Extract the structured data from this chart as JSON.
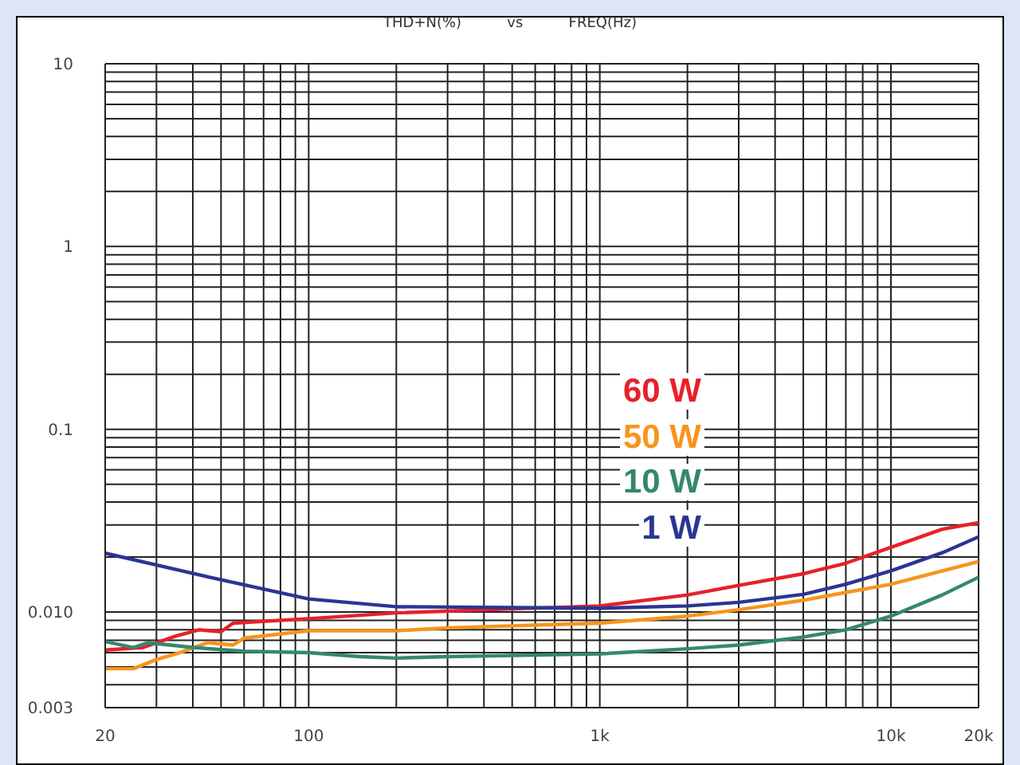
{
  "chart_data": {
    "type": "line",
    "title": "THD+N(%)          vs          FREQ(Hz)",
    "log": "xy",
    "grid": true,
    "legend": "right",
    "marker": "none",
    "line_style": "solid",
    "xlim": [
      20,
      20000
    ],
    "ylim": [
      0.003,
      10
    ],
    "xticks": [
      20,
      100,
      {
        "value": 1000,
        "label": "1k"
      },
      {
        "value": 10000,
        "label": "10k"
      },
      {
        "value": 20000,
        "label": "20k"
      }
    ],
    "yticks": [
      0.003,
      {
        "value": 0.01,
        "label": "0.010"
      },
      0.1,
      1,
      10
    ],
    "series": [
      {
        "name": "60 W",
        "color": "#e8202a",
        "x": [
          20,
          27,
          35,
          42,
          50,
          55,
          100,
          200,
          500,
          1000,
          2000,
          3000,
          5000,
          7000,
          10000,
          15000,
          20000
        ],
        "values": [
          0.0062,
          0.0064,
          0.0074,
          0.008,
          0.0078,
          0.0087,
          0.0092,
          0.0099,
          0.0104,
          0.0108,
          0.0124,
          0.014,
          0.0162,
          0.0185,
          0.0226,
          0.0284,
          0.0308
        ]
      },
      {
        "name": "50 W",
        "color": "#f7941d",
        "x": [
          20,
          25,
          30,
          35,
          45,
          55,
          60,
          100,
          200,
          300,
          1000,
          2000,
          3000,
          5000,
          7000,
          10000,
          20000
        ],
        "values": [
          0.0049,
          0.0049,
          0.0055,
          0.0059,
          0.0068,
          0.0066,
          0.0072,
          0.0079,
          0.0079,
          0.0082,
          0.0087,
          0.0095,
          0.0103,
          0.0116,
          0.0128,
          0.0142,
          0.0189
        ]
      },
      {
        "name": "10 W",
        "color": "#35876f",
        "x": [
          20,
          25,
          28,
          40,
          60,
          100,
          150,
          200,
          300,
          1000,
          2000,
          3000,
          5000,
          7000,
          10000,
          15000,
          20000
        ],
        "values": [
          0.0069,
          0.0064,
          0.0068,
          0.0064,
          0.0061,
          0.006,
          0.0057,
          0.0056,
          0.0057,
          0.0059,
          0.0063,
          0.0066,
          0.0073,
          0.008,
          0.0095,
          0.0124,
          0.0155
        ]
      },
      {
        "name": "1 W",
        "color": "#2b3593",
        "x": [
          20,
          45,
          100,
          200,
          1000,
          2000,
          3000,
          5000,
          7000,
          10000,
          15000,
          20000
        ],
        "values": [
          0.021,
          0.0156,
          0.0118,
          0.0107,
          0.0105,
          0.0108,
          0.0113,
          0.0125,
          0.0142,
          0.0168,
          0.0211,
          0.0258
        ]
      }
    ]
  }
}
